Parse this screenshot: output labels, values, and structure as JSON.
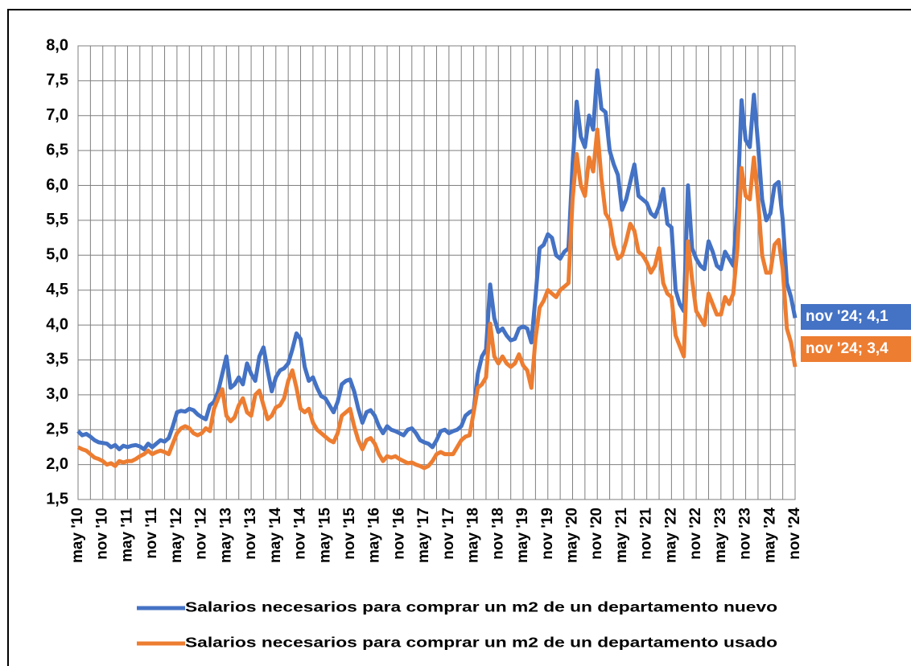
{
  "chart_data": {
    "type": "line",
    "categories": [
      "may '10",
      null,
      null,
      null,
      null,
      null,
      "nov '10",
      null,
      null,
      null,
      null,
      null,
      "may '11",
      null,
      null,
      null,
      null,
      null,
      "nov '11",
      null,
      null,
      null,
      null,
      null,
      "may '12",
      null,
      null,
      null,
      null,
      null,
      "nov '12",
      null,
      null,
      null,
      null,
      null,
      "may '13",
      null,
      null,
      null,
      null,
      null,
      "nov '13",
      null,
      null,
      null,
      null,
      null,
      "may '14",
      null,
      null,
      null,
      null,
      null,
      "nov '14",
      null,
      null,
      null,
      null,
      null,
      "may '15",
      null,
      null,
      null,
      null,
      null,
      "nov '15",
      null,
      null,
      null,
      null,
      null,
      "may '16",
      null,
      null,
      null,
      null,
      null,
      "nov '16",
      null,
      null,
      null,
      null,
      null,
      "may '17",
      null,
      null,
      null,
      null,
      null,
      "nov '17",
      null,
      null,
      null,
      null,
      null,
      "may '18",
      null,
      null,
      null,
      null,
      null,
      "nov '18",
      null,
      null,
      null,
      null,
      null,
      "may '19",
      null,
      null,
      null,
      null,
      null,
      "nov '19",
      null,
      null,
      null,
      null,
      null,
      "may '20",
      null,
      null,
      null,
      null,
      null,
      "nov '20",
      null,
      null,
      null,
      null,
      null,
      "may '21",
      null,
      null,
      null,
      null,
      null,
      "nov '21",
      null,
      null,
      null,
      null,
      null,
      "may '22",
      null,
      null,
      null,
      null,
      null,
      "nov '22",
      null,
      null,
      null,
      null,
      null,
      "may '23",
      null,
      null,
      null,
      null,
      null,
      "nov '23",
      null,
      null,
      null,
      null,
      null,
      "may '24",
      null,
      null,
      null,
      null,
      null,
      "nov '24"
    ],
    "series": [
      {
        "name": "Salarios necesarios para comprar un m2 de un departamento nuevo",
        "color": "#4472c4",
        "values": [
          2.48,
          2.42,
          2.44,
          2.4,
          2.35,
          2.32,
          2.31,
          2.3,
          2.25,
          2.28,
          2.22,
          2.27,
          2.25,
          2.27,
          2.28,
          2.26,
          2.22,
          2.3,
          2.25,
          2.3,
          2.35,
          2.33,
          2.38,
          2.55,
          2.75,
          2.77,
          2.76,
          2.8,
          2.78,
          2.72,
          2.68,
          2.65,
          2.85,
          2.9,
          3.05,
          3.3,
          3.55,
          3.1,
          3.15,
          3.25,
          3.15,
          3.45,
          3.3,
          3.2,
          3.55,
          3.68,
          3.35,
          3.05,
          3.25,
          3.35,
          3.38,
          3.45,
          3.65,
          3.88,
          3.8,
          3.4,
          3.2,
          3.25,
          3.1,
          2.98,
          2.95,
          2.85,
          2.75,
          2.9,
          3.15,
          3.2,
          3.22,
          3.05,
          2.8,
          2.6,
          2.75,
          2.78,
          2.7,
          2.55,
          2.45,
          2.55,
          2.5,
          2.48,
          2.45,
          2.42,
          2.5,
          2.52,
          2.45,
          2.35,
          2.32,
          2.3,
          2.25,
          2.35,
          2.48,
          2.5,
          2.45,
          2.48,
          2.5,
          2.55,
          2.7,
          2.75,
          2.78,
          3.3,
          3.55,
          3.65,
          4.58,
          4.1,
          3.9,
          3.95,
          3.85,
          3.78,
          3.8,
          3.95,
          3.98,
          3.95,
          3.75,
          4.4,
          5.1,
          5.15,
          5.3,
          5.25,
          5.0,
          4.95,
          5.05,
          5.1,
          6.3,
          7.2,
          6.7,
          6.55,
          7.0,
          6.8,
          7.65,
          7.1,
          7.05,
          6.5,
          6.3,
          6.15,
          5.65,
          5.8,
          6.05,
          6.3,
          5.85,
          5.8,
          5.75,
          5.6,
          5.55,
          5.7,
          5.95,
          5.45,
          5.4,
          4.5,
          4.3,
          4.2,
          6.0,
          5.1,
          4.95,
          4.85,
          4.8,
          5.2,
          5.05,
          4.85,
          4.8,
          5.05,
          4.95,
          4.85,
          5.7,
          7.22,
          6.65,
          6.55,
          7.3,
          6.6,
          5.8,
          5.5,
          5.6,
          6.0,
          6.05,
          5.5,
          4.6,
          4.4,
          4.1
        ]
      },
      {
        "name": "Salarios necesarios para comprar un m2 de un departamento usado",
        "color": "#ed7d31",
        "values": [
          2.25,
          2.22,
          2.2,
          2.15,
          2.1,
          2.08,
          2.05,
          2.0,
          2.02,
          1.98,
          2.05,
          2.03,
          2.05,
          2.05,
          2.08,
          2.12,
          2.15,
          2.2,
          2.15,
          2.18,
          2.2,
          2.18,
          2.15,
          2.3,
          2.45,
          2.52,
          2.55,
          2.52,
          2.45,
          2.42,
          2.45,
          2.52,
          2.48,
          2.8,
          2.95,
          3.08,
          2.7,
          2.62,
          2.68,
          2.85,
          2.95,
          2.75,
          2.7,
          3.0,
          3.06,
          2.85,
          2.65,
          2.7,
          2.82,
          2.85,
          2.95,
          3.2,
          3.35,
          3.1,
          2.8,
          2.75,
          2.8,
          2.6,
          2.5,
          2.45,
          2.4,
          2.35,
          2.32,
          2.45,
          2.7,
          2.75,
          2.8,
          2.55,
          2.35,
          2.22,
          2.35,
          2.38,
          2.3,
          2.15,
          2.05,
          2.12,
          2.1,
          2.12,
          2.08,
          2.05,
          2.02,
          2.03,
          2.0,
          1.98,
          1.95,
          1.98,
          2.05,
          2.15,
          2.18,
          2.15,
          2.15,
          2.15,
          2.25,
          2.35,
          2.4,
          2.42,
          2.75,
          3.1,
          3.15,
          3.25,
          4.02,
          3.55,
          3.45,
          3.55,
          3.45,
          3.4,
          3.45,
          3.58,
          3.42,
          3.35,
          3.1,
          3.8,
          4.25,
          4.35,
          4.5,
          4.45,
          4.4,
          4.5,
          4.55,
          4.6,
          5.8,
          6.45,
          6.0,
          5.85,
          6.4,
          6.2,
          6.8,
          6.1,
          5.6,
          5.5,
          5.15,
          4.95,
          5.0,
          5.2,
          5.45,
          5.35,
          5.05,
          5.0,
          4.9,
          4.75,
          4.85,
          5.1,
          4.6,
          4.45,
          4.4,
          3.85,
          3.7,
          3.55,
          5.2,
          4.65,
          4.2,
          4.1,
          4.0,
          4.45,
          4.3,
          4.15,
          4.15,
          4.4,
          4.3,
          4.45,
          5.1,
          6.25,
          5.85,
          5.8,
          6.4,
          5.8,
          5.0,
          4.75,
          4.75,
          5.15,
          5.22,
          4.8,
          3.95,
          3.75,
          3.4
        ]
      }
    ],
    "annotations": [
      "nov '24; 4,1",
      "nov '24; 3,4"
    ],
    "ylim": [
      1.5,
      8
    ],
    "yticks": [
      {
        "value": 1.5,
        "label": "1,5"
      },
      {
        "value": 2,
        "label": "2,0"
      },
      {
        "value": 2.5,
        "label": "2,5"
      },
      {
        "value": 3,
        "label": "3,0"
      },
      {
        "value": 3.5,
        "label": "3,5"
      },
      {
        "value": 4,
        "label": "4,0"
      },
      {
        "value": 4.5,
        "label": "4,5"
      },
      {
        "value": 5,
        "label": "5,0"
      },
      {
        "value": 5.5,
        "label": "5,5"
      },
      {
        "value": 6,
        "label": "6,0"
      },
      {
        "value": 6.5,
        "label": "6,5"
      },
      {
        "value": 7,
        "label": "7,0"
      },
      {
        "value": 7.5,
        "label": "7,5"
      },
      {
        "value": 8,
        "label": "8,0"
      }
    ],
    "grid": true,
    "legend": "bottom"
  }
}
